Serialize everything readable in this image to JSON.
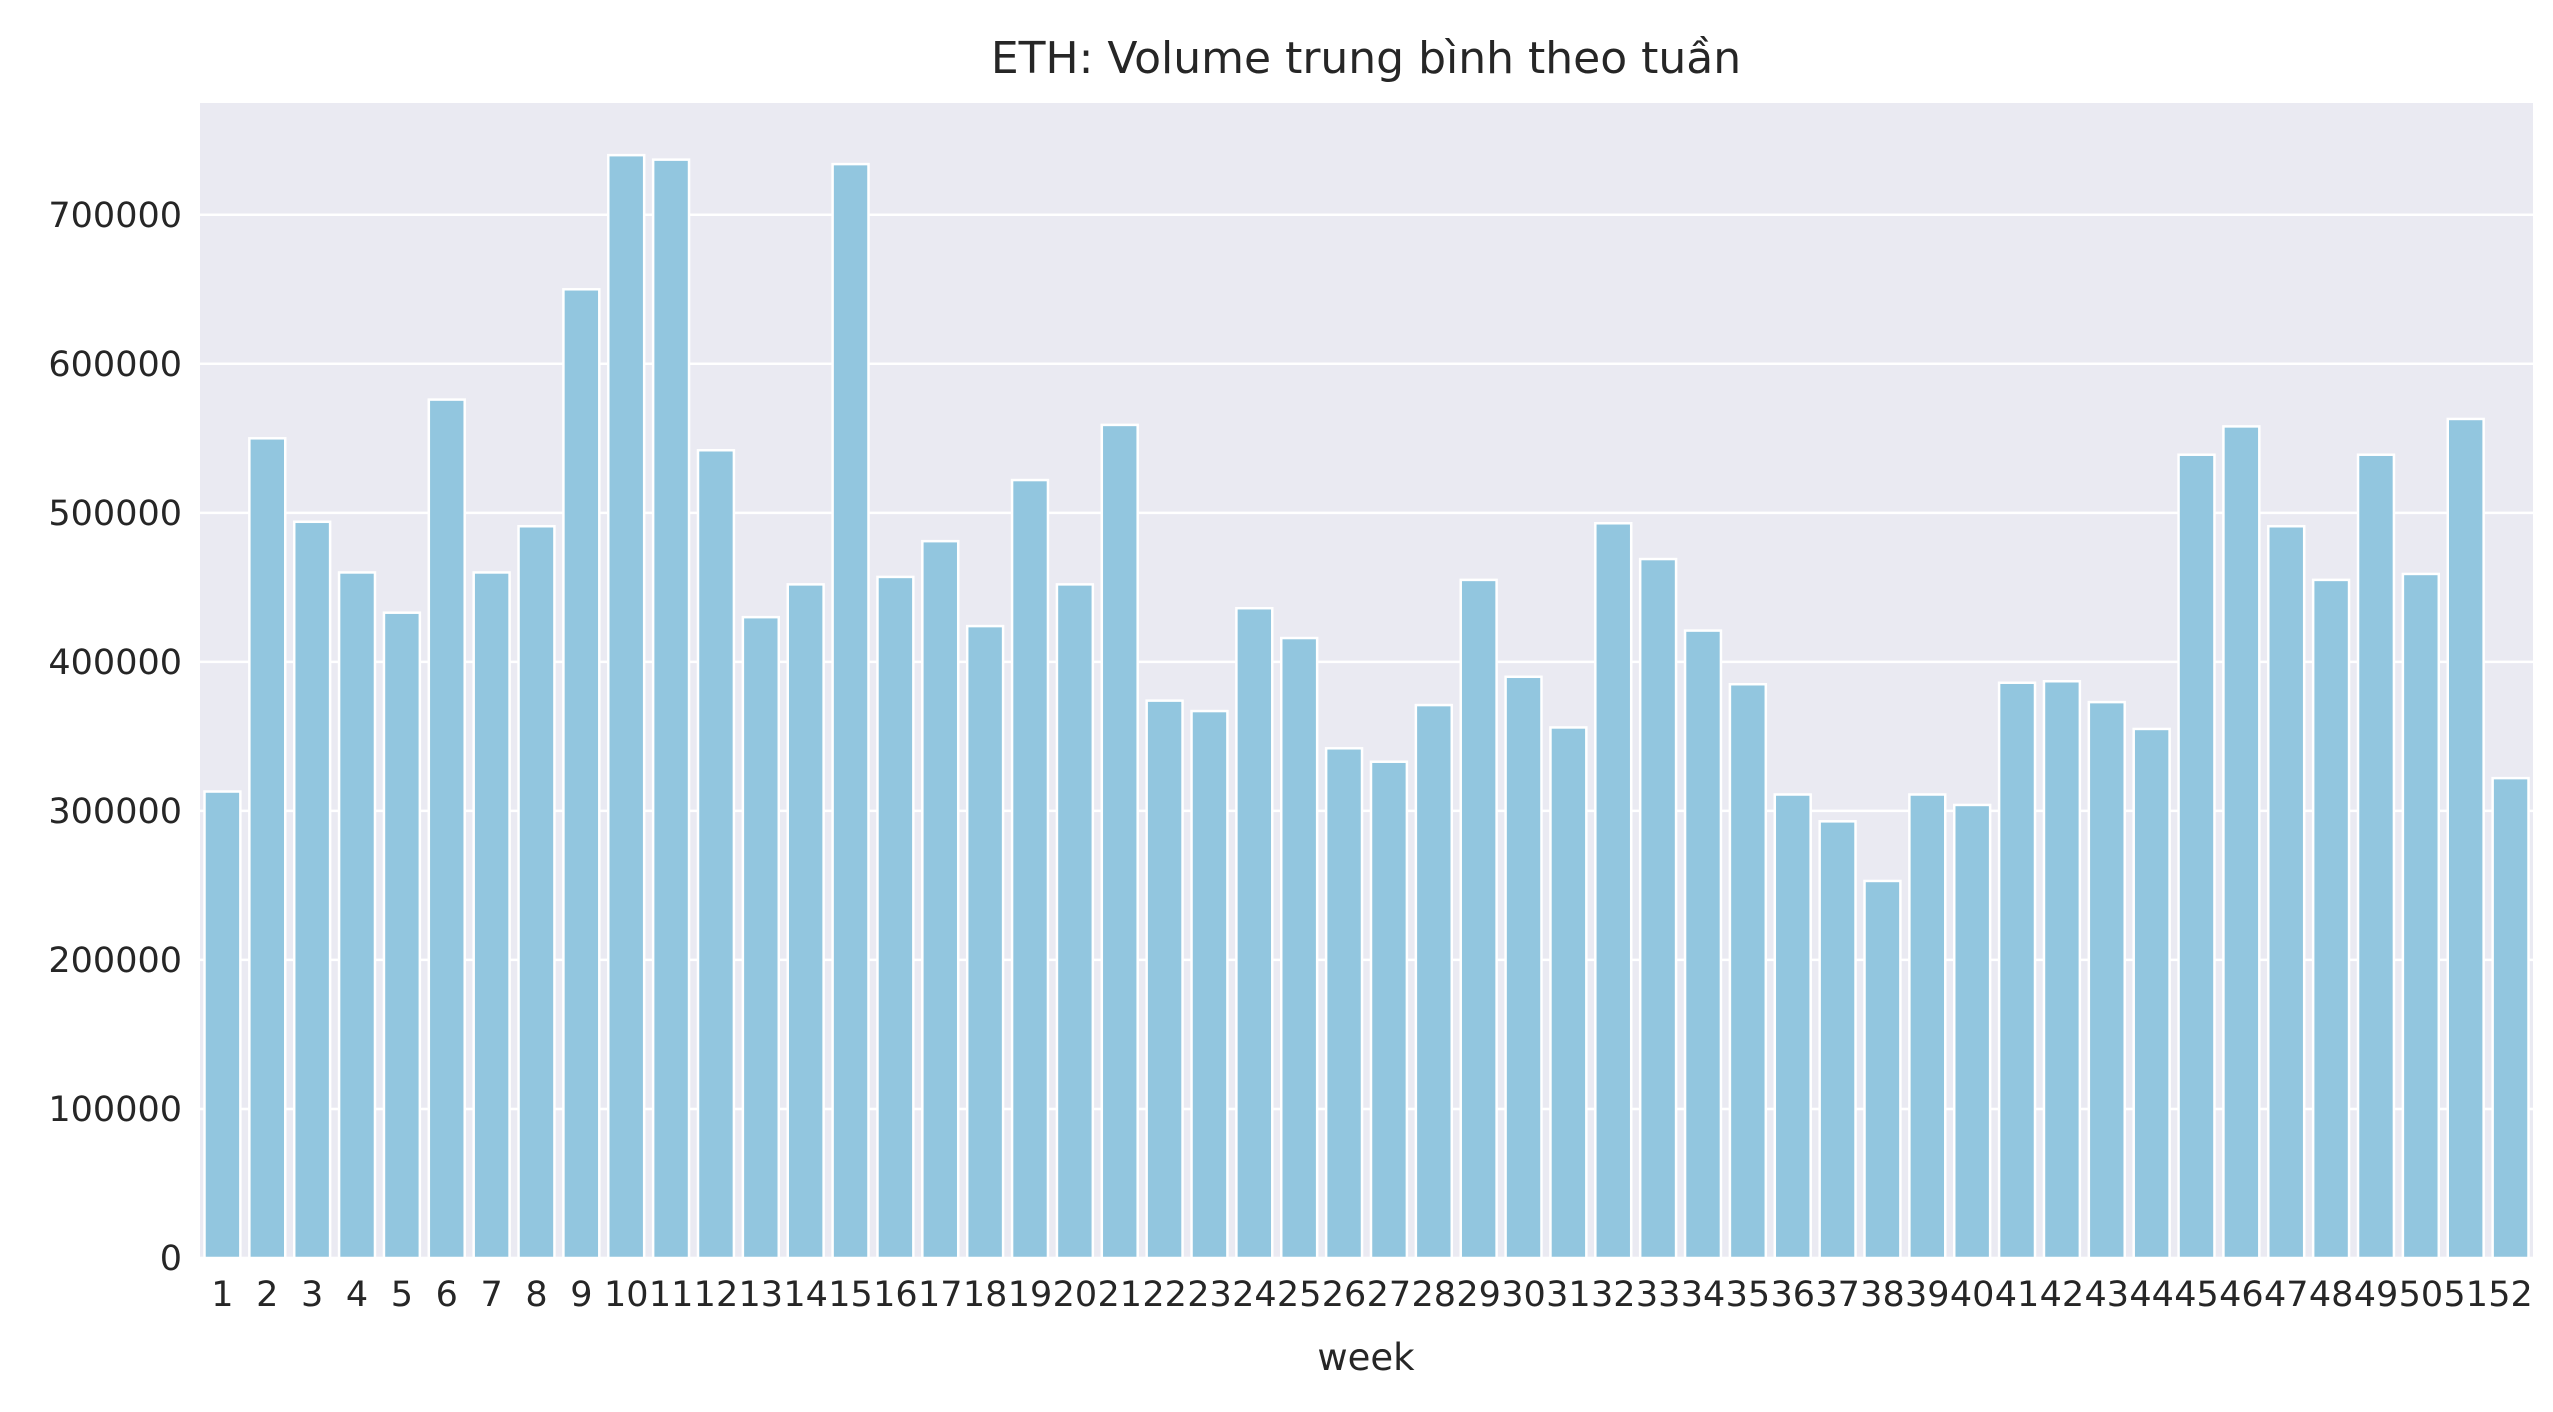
{
  "chart_data": {
    "type": "bar",
    "title": "ETH: Volume trung bình theo tuần",
    "xlabel": "week",
    "ylabel": "",
    "ylim": [
      0,
      775000
    ],
    "yticks": [
      0,
      100000,
      200000,
      300000,
      400000,
      500000,
      600000,
      700000
    ],
    "ytick_labels": [
      "0",
      "100000",
      "200000",
      "300000",
      "400000",
      "500000",
      "600000",
      "700000"
    ],
    "grid": true,
    "legend": "none",
    "bar_color": "#92c6df",
    "background_color": "#eaeaf2",
    "grid_color": "#ffffff",
    "categories": [
      "1",
      "2",
      "3",
      "4",
      "5",
      "6",
      "7",
      "8",
      "9",
      "10",
      "11",
      "12",
      "13",
      "14",
      "15",
      "16",
      "17",
      "18",
      "19",
      "20",
      "21",
      "22",
      "23",
      "24",
      "25",
      "26",
      "27",
      "28",
      "29",
      "30",
      "31",
      "32",
      "33",
      "34",
      "35",
      "36",
      "37",
      "38",
      "39",
      "40",
      "41",
      "42",
      "43",
      "44",
      "45",
      "46",
      "47",
      "48",
      "49",
      "50",
      "51",
      "52"
    ],
    "values": [
      313000,
      550000,
      494000,
      460000,
      433000,
      576000,
      460000,
      491000,
      650000,
      740000,
      737000,
      542000,
      430000,
      452000,
      734000,
      457000,
      481000,
      424000,
      522000,
      452000,
      559000,
      374000,
      367000,
      436000,
      416000,
      342000,
      333000,
      371000,
      455000,
      390000,
      356000,
      493000,
      469000,
      421000,
      385000,
      311000,
      293000,
      253000,
      311000,
      304000,
      386000,
      387000,
      373000,
      355000,
      539000,
      558000,
      491000,
      455000,
      539000,
      459000,
      563000,
      322000
    ]
  }
}
